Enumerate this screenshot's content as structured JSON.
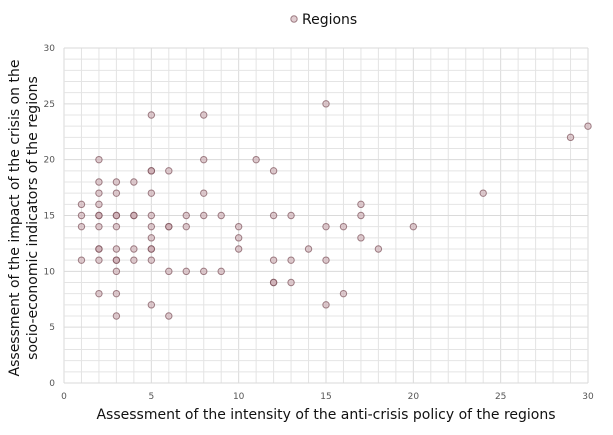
{
  "chart_data": {
    "type": "scatter",
    "title": "",
    "xlabel": "Assessment of the intensity of the anti-crisis policy of the regions",
    "ylabel_lines": [
      "Assessment of the impact of the crisis on the",
      "socio-economic indicators of the regions"
    ],
    "xlim": [
      0,
      30
    ],
    "ylim": [
      0,
      30
    ],
    "x_ticks": [
      0,
      5,
      10,
      15,
      20,
      25,
      30
    ],
    "y_ticks": [
      0,
      5,
      10,
      15,
      20,
      25,
      30
    ],
    "grid": true,
    "legend_position": "top-center",
    "marker_color": "#c9a4ab",
    "series": [
      {
        "name": "Regions",
        "points": [
          [
            1,
            16
          ],
          [
            1,
            15
          ],
          [
            1,
            14
          ],
          [
            1,
            11
          ],
          [
            2,
            20
          ],
          [
            2,
            18
          ],
          [
            2,
            17
          ],
          [
            2,
            16
          ],
          [
            2,
            15
          ],
          [
            2,
            15
          ],
          [
            2,
            14
          ],
          [
            2,
            12
          ],
          [
            2,
            12
          ],
          [
            2,
            11
          ],
          [
            2,
            8
          ],
          [
            3,
            18
          ],
          [
            3,
            17
          ],
          [
            3,
            15
          ],
          [
            3,
            15
          ],
          [
            3,
            14
          ],
          [
            3,
            12
          ],
          [
            3,
            11
          ],
          [
            3,
            11
          ],
          [
            3,
            10
          ],
          [
            3,
            8
          ],
          [
            3,
            6
          ],
          [
            4,
            18
          ],
          [
            4,
            15
          ],
          [
            4,
            15
          ],
          [
            4,
            12
          ],
          [
            4,
            11
          ],
          [
            5,
            24
          ],
          [
            5,
            19
          ],
          [
            5,
            19
          ],
          [
            5,
            17
          ],
          [
            5,
            15
          ],
          [
            5,
            14
          ],
          [
            5,
            13
          ],
          [
            5,
            12
          ],
          [
            5,
            12
          ],
          [
            5,
            11
          ],
          [
            5,
            7
          ],
          [
            6,
            19
          ],
          [
            6,
            14
          ],
          [
            6,
            14
          ],
          [
            6,
            10
          ],
          [
            6,
            6
          ],
          [
            7,
            15
          ],
          [
            7,
            14
          ],
          [
            7,
            10
          ],
          [
            8,
            24
          ],
          [
            8,
            20
          ],
          [
            8,
            17
          ],
          [
            8,
            15
          ],
          [
            8,
            10
          ],
          [
            9,
            15
          ],
          [
            9,
            10
          ],
          [
            10,
            14
          ],
          [
            10,
            13
          ],
          [
            10,
            12
          ],
          [
            11,
            20
          ],
          [
            12,
            19
          ],
          [
            12,
            15
          ],
          [
            12,
            11
          ],
          [
            12,
            9
          ],
          [
            12,
            9
          ],
          [
            13,
            15
          ],
          [
            13,
            11
          ],
          [
            13,
            9
          ],
          [
            14,
            12
          ],
          [
            15,
            25
          ],
          [
            15,
            14
          ],
          [
            15,
            11
          ],
          [
            15,
            7
          ],
          [
            16,
            14
          ],
          [
            16,
            8
          ],
          [
            17,
            16
          ],
          [
            17,
            15
          ],
          [
            17,
            13
          ],
          [
            18,
            12
          ],
          [
            20,
            14
          ],
          [
            24,
            17
          ],
          [
            29,
            22
          ],
          [
            30,
            23
          ]
        ]
      }
    ]
  }
}
